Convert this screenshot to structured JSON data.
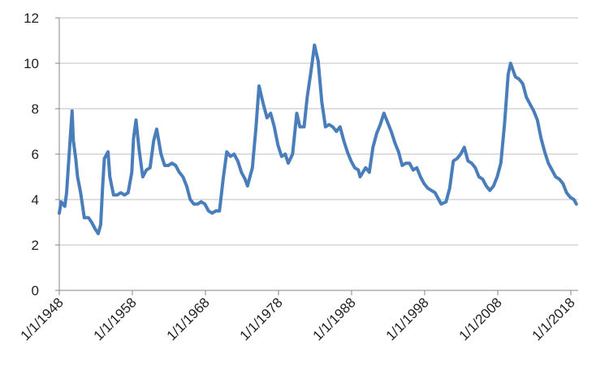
{
  "chart_data": {
    "type": "line",
    "x": [
      "1/1/1948",
      "4/1/1948",
      "10/1/1948",
      "1/1/1949",
      "7/1/1949",
      "10/1/1949",
      "12/1/1949",
      "4/1/1950",
      "7/1/1950",
      "12/1/1950",
      "6/1/1951",
      "1/1/1952",
      "6/1/1952",
      "12/1/1952",
      "5/1/1953",
      "9/1/1953",
      "12/1/1953",
      "3/1/1954",
      "9/1/1954",
      "12/1/1954",
      "6/1/1955",
      "12/1/1955",
      "6/1/1956",
      "12/1/1956",
      "6/1/1957",
      "12/1/1957",
      "3/1/1958",
      "7/1/1958",
      "12/1/1958",
      "6/1/1959",
      "12/1/1959",
      "6/1/1960",
      "12/1/1960",
      "5/1/1961",
      "12/1/1961",
      "6/1/1962",
      "12/1/1962",
      "6/1/1963",
      "12/1/1963",
      "6/1/1964",
      "12/1/1964",
      "6/1/1965",
      "12/1/1965",
      "6/1/1966",
      "12/1/1966",
      "6/1/1967",
      "12/1/1967",
      "6/1/1968",
      "12/1/1968",
      "6/1/1969",
      "12/1/1969",
      "6/1/1970",
      "12/1/1970",
      "6/1/1971",
      "12/1/1971",
      "6/1/1972",
      "12/1/1972",
      "6/1/1973",
      "10/1/1973",
      "6/1/1974",
      "12/1/1974",
      "5/1/1975",
      "12/1/1975",
      "6/1/1976",
      "12/1/1976",
      "6/1/1977",
      "12/1/1977",
      "6/1/1978",
      "12/1/1978",
      "5/1/1979",
      "12/1/1979",
      "7/1/1980",
      "12/1/1980",
      "7/1/1981",
      "12/1/1981",
      "6/1/1982",
      "12/1/1982",
      "6/1/1983",
      "12/1/1983",
      "6/1/1984",
      "12/1/1984",
      "6/1/1985",
      "12/1/1985",
      "6/1/1986",
      "12/1/1986",
      "6/1/1987",
      "12/1/1987",
      "6/1/1988",
      "12/1/1988",
      "3/1/1989",
      "12/1/1989",
      "6/1/1990",
      "12/1/1990",
      "6/1/1991",
      "12/1/1991",
      "6/1/1992",
      "12/1/1992",
      "6/1/1993",
      "12/1/1993",
      "6/1/1994",
      "12/1/1994",
      "6/1/1995",
      "12/1/1995",
      "6/1/1996",
      "12/1/1996",
      "6/1/1997",
      "12/1/1997",
      "6/1/1998",
      "12/1/1998",
      "6/1/1999",
      "12/1/1999",
      "4/1/2000",
      "12/1/2000",
      "6/1/2001",
      "12/1/2001",
      "6/1/2002",
      "12/1/2002",
      "6/1/2003",
      "12/1/2003",
      "6/1/2004",
      "12/1/2004",
      "6/1/2005",
      "12/1/2005",
      "6/1/2006",
      "12/1/2006",
      "6/1/2007",
      "12/1/2007",
      "6/1/2008",
      "12/1/2008",
      "6/1/2009",
      "10/1/2009",
      "6/1/2010",
      "12/1/2010",
      "6/1/2011",
      "12/1/2011",
      "6/1/2012",
      "12/1/2012",
      "6/1/2013",
      "12/1/2013",
      "6/1/2014",
      "12/1/2014",
      "6/1/2015",
      "12/1/2015",
      "6/1/2016",
      "12/1/2016",
      "6/1/2017",
      "12/1/2017",
      "6/1/2018",
      "10/1/2018"
    ],
    "series": [
      {
        "color": "#4a7ebb",
        "values": [
          3.4,
          3.9,
          3.7,
          4.3,
          6.7,
          7.9,
          6.6,
          5.8,
          5.0,
          4.3,
          3.2,
          3.2,
          3.0,
          2.7,
          2.5,
          2.9,
          4.5,
          5.8,
          6.1,
          5.0,
          4.2,
          4.2,
          4.3,
          4.2,
          4.3,
          5.2,
          6.7,
          7.5,
          6.2,
          5.0,
          5.3,
          5.4,
          6.6,
          7.1,
          6.0,
          5.5,
          5.5,
          5.6,
          5.5,
          5.2,
          5.0,
          4.6,
          4.0,
          3.8,
          3.8,
          3.9,
          3.8,
          3.5,
          3.4,
          3.5,
          3.5,
          4.9,
          6.1,
          5.9,
          6.0,
          5.7,
          5.2,
          4.9,
          4.6,
          5.4,
          7.2,
          9.0,
          8.2,
          7.6,
          7.8,
          7.2,
          6.4,
          5.9,
          6.0,
          5.6,
          6.0,
          7.8,
          7.2,
          7.2,
          8.5,
          9.6,
          10.8,
          10.1,
          8.3,
          7.2,
          7.3,
          7.2,
          7.0,
          7.2,
          6.6,
          6.1,
          5.7,
          5.4,
          5.3,
          5.0,
          5.4,
          5.2,
          6.3,
          6.9,
          7.3,
          7.8,
          7.4,
          7.0,
          6.5,
          6.1,
          5.5,
          5.6,
          5.6,
          5.3,
          5.4,
          5.0,
          4.7,
          4.5,
          4.4,
          4.3,
          4.0,
          3.8,
          3.9,
          4.5,
          5.7,
          5.8,
          6.0,
          6.3,
          5.7,
          5.6,
          5.4,
          5.0,
          4.9,
          4.6,
          4.4,
          4.6,
          5.0,
          5.6,
          7.3,
          9.5,
          10.0,
          9.4,
          9.3,
          9.1,
          8.5,
          8.2,
          7.9,
          7.5,
          6.7,
          6.1,
          5.6,
          5.3,
          5.0,
          4.9,
          4.7,
          4.3,
          4.1,
          4.0,
          3.8
        ]
      }
    ],
    "xlim": [
      "1/1/1948",
      "1/1/2019"
    ],
    "xticks": [
      "1/1/1948",
      "1/1/1958",
      "1/1/1968",
      "1/1/1978",
      "1/1/1988",
      "1/1/1998",
      "1/1/2008",
      "1/1/2018"
    ],
    "ylim": [
      0,
      12
    ],
    "yticks": [
      0,
      2,
      4,
      6,
      8,
      10,
      12
    ],
    "grid": true
  }
}
